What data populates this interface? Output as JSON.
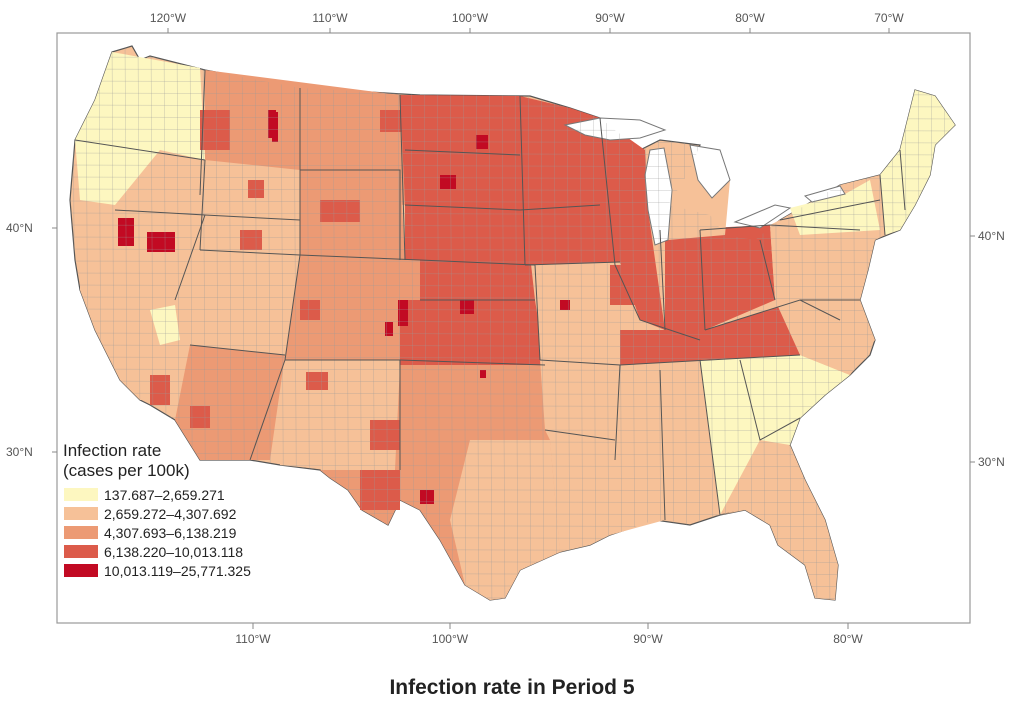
{
  "caption": "Infection rate in Period 5",
  "axes": {
    "top_lon_ticks": [
      "120°W",
      "110°W",
      "100°W",
      "90°W",
      "80°W",
      "70°W"
    ],
    "bottom_lon_ticks": [
      "110°W",
      "100°W",
      "90°W",
      "80°W"
    ],
    "left_lat_ticks": [
      "40°N",
      "30°N"
    ],
    "right_lat_ticks": [
      "40°N",
      "30°N"
    ]
  },
  "legend": {
    "title_line1": "Infection rate",
    "title_line2": "(cases per 100k)",
    "classes": [
      {
        "label": "137.687–2,659.271",
        "color": "#fdf7c0"
      },
      {
        "label": "2,659.272–4,307.692",
        "color": "#f6c198"
      },
      {
        "label": "4,307.693–6,138.219",
        "color": "#ec9a74"
      },
      {
        "label": "6,138.220–10,013.118",
        "color": "#dc5b4a"
      },
      {
        "label": "10,013.119–25,771.325",
        "color": "#c20a23"
      }
    ]
  },
  "colors": {
    "water_and_background": "#ffffff",
    "frame": "#999999",
    "county_border": "#9a9a9a",
    "state_border": "#555555"
  }
}
